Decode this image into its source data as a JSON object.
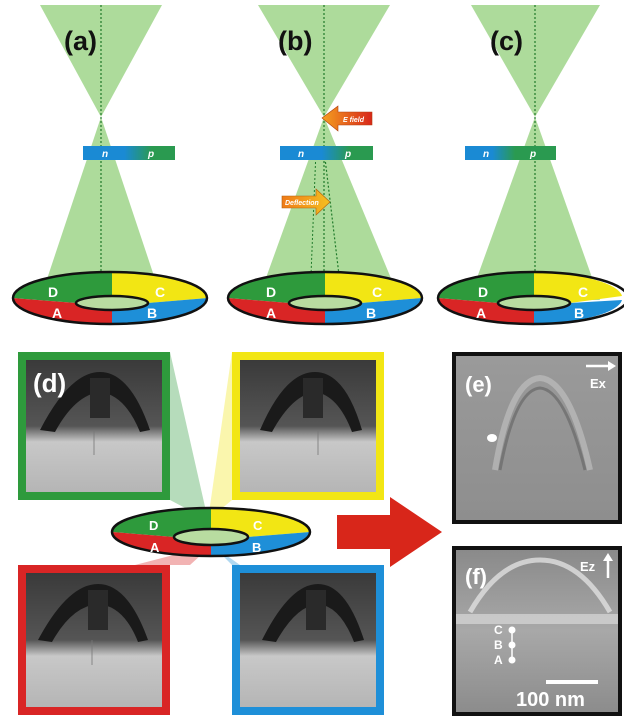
{
  "panels": {
    "a": {
      "label": "(a)"
    },
    "b": {
      "label": "(b)",
      "efield": "E field",
      "deflection": "Deflection"
    },
    "c": {
      "label": "(c)"
    },
    "d": {
      "label": "(d)"
    },
    "e": {
      "label": "(e)",
      "field": "Ex"
    },
    "f": {
      "label": "(f)",
      "field": "Ez",
      "scalebar": "100 nm"
    }
  },
  "junction": {
    "n": "n",
    "p": "p"
  },
  "detector": {
    "A": "A",
    "B": "B",
    "C": "C",
    "D": "D"
  },
  "points": {
    "C": "C",
    "B": "B",
    "A": "A"
  },
  "colors": {
    "cone": "#9fd58a",
    "green": "#2e9a3c",
    "yellow": "#f2e614",
    "red": "#d92525",
    "blue": "#1e8fd8",
    "junction_blue": "#1a8ad4",
    "arrow_red": "#d8261a"
  }
}
